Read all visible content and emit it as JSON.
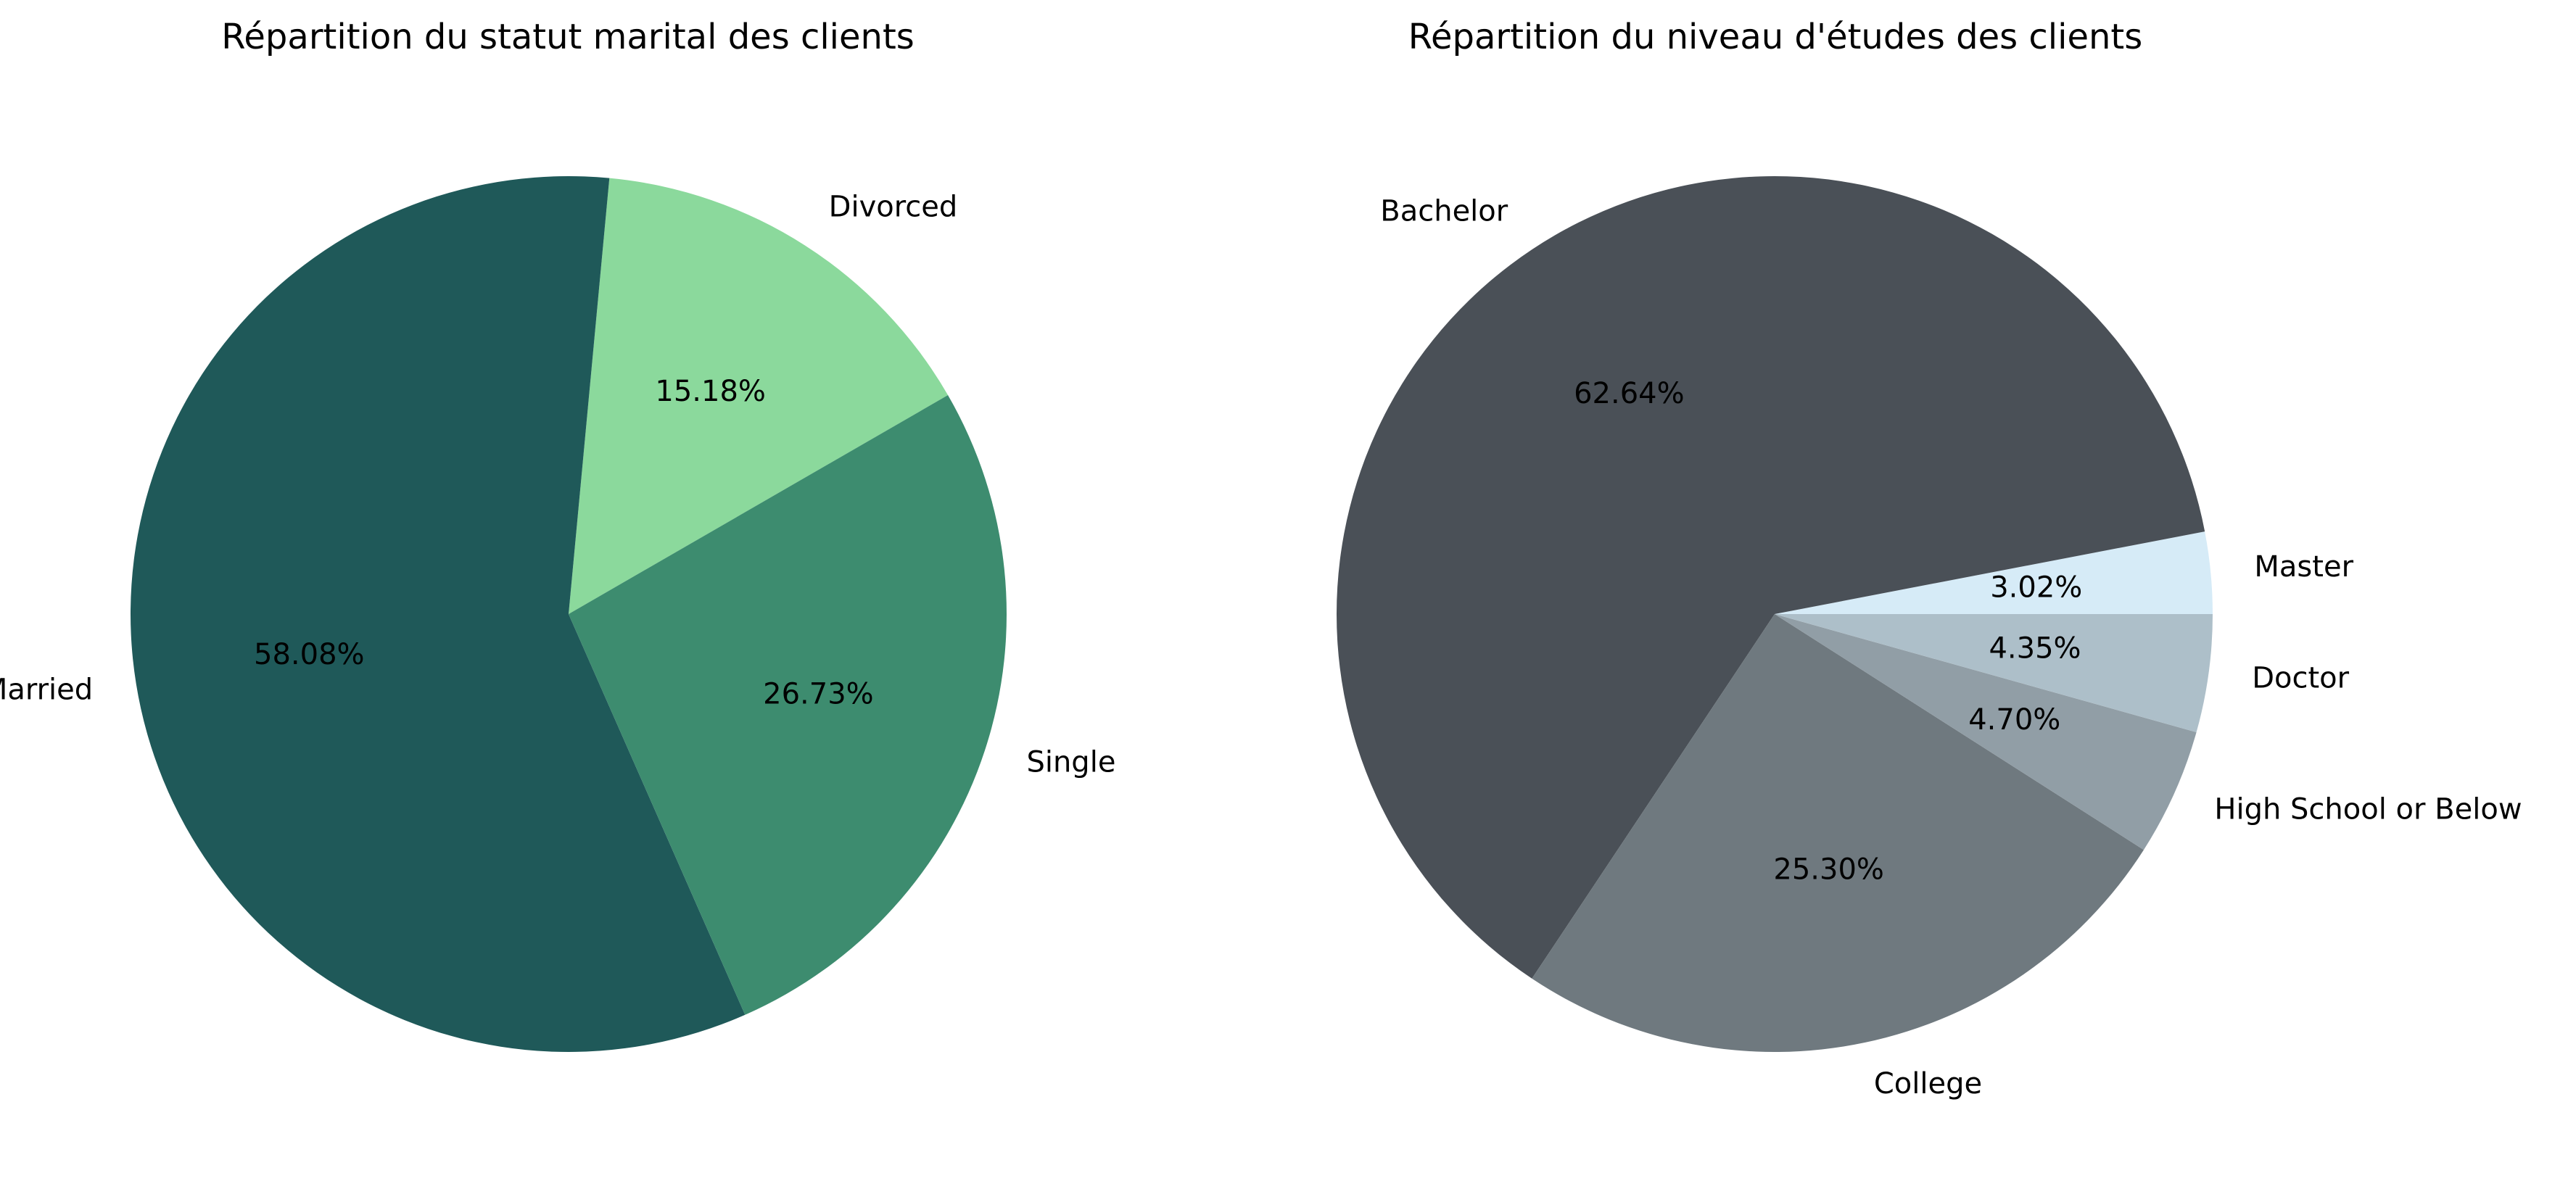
{
  "chart_data": [
    {
      "type": "pie",
      "title": "Répartition du statut marital des clients",
      "start_angle_deg": 30,
      "direction": "counterclockwise",
      "slices": [
        {
          "label": "Divorced",
          "value": 15.18,
          "pct_label": "15.18%",
          "color": "#8BD99C"
        },
        {
          "label": "Married",
          "value": 58.08,
          "pct_label": "58.08%",
          "color": "#1F5959"
        },
        {
          "label": "Single",
          "value": 26.73,
          "pct_label": "26.73%",
          "color": "#3D8C6F"
        }
      ]
    },
    {
      "type": "pie",
      "title": "Répartition du niveau d'études des clients",
      "start_angle_deg": 0,
      "direction": "counterclockwise",
      "slices": [
        {
          "label": "Master",
          "value": 3.02,
          "pct_label": "3.02%",
          "color": "#D6EBF7"
        },
        {
          "label": "Bachelor",
          "value": 62.64,
          "pct_label": "62.64%",
          "color": "#4A5057"
        },
        {
          "label": "College",
          "value": 25.3,
          "pct_label": "25.30%",
          "color": "#6F797F"
        },
        {
          "label": "High School or Below",
          "value": 4.7,
          "pct_label": "4.70%",
          "color": "#919EA6"
        },
        {
          "label": "Doctor",
          "value": 4.35,
          "pct_label": "4.35%",
          "color": "#ADBFC9"
        }
      ]
    }
  ]
}
